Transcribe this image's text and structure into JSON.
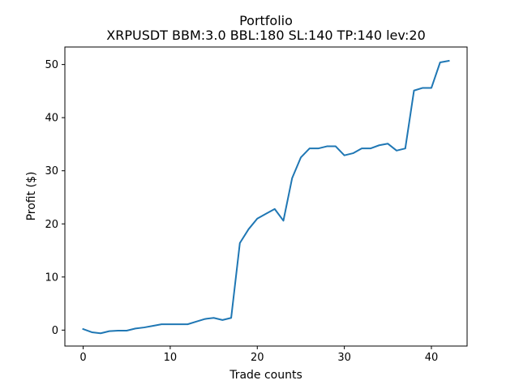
{
  "chart_data": {
    "type": "line",
    "title": "Portfolio",
    "subtitle": "XRPUSDT BBM:3.0 BBL:180 SL:140 TP:140 lev:20",
    "xlabel": "Trade counts",
    "ylabel": "Profit ($)",
    "xlim": [
      -2.1,
      44.1
    ],
    "ylim": [
      -3.0,
      53.3
    ],
    "xticks": [
      0,
      10,
      20,
      30,
      40
    ],
    "yticks": [
      0,
      10,
      20,
      30,
      40,
      50
    ],
    "grid": false,
    "series": [
      {
        "color": "#1f77b4",
        "x": [
          0,
          1,
          2,
          3,
          4,
          5,
          6,
          7,
          8,
          9,
          10,
          11,
          12,
          13,
          14,
          15,
          16,
          17,
          18,
          19,
          20,
          21,
          22,
          23,
          24,
          25,
          26,
          27,
          28,
          29,
          30,
          31,
          32,
          33,
          34,
          35,
          36,
          37,
          38,
          39,
          40,
          41,
          42
        ],
        "y": [
          0.2,
          -0.4,
          -0.6,
          -0.2,
          -0.1,
          -0.1,
          0.3,
          0.5,
          0.8,
          1.1,
          1.1,
          1.1,
          1.1,
          1.6,
          2.1,
          2.3,
          1.9,
          2.3,
          16.4,
          19.0,
          21.0,
          21.9,
          22.8,
          20.6,
          28.6,
          32.5,
          34.2,
          34.2,
          34.6,
          34.6,
          32.9,
          33.3,
          34.2,
          34.2,
          34.8,
          35.1,
          33.8,
          34.2,
          45.1,
          45.6,
          45.6,
          50.4,
          50.7
        ]
      }
    ]
  }
}
